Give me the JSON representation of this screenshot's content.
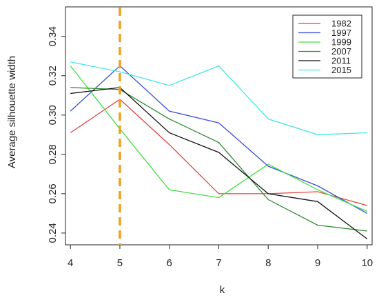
{
  "chart_data": {
    "type": "line",
    "title": "",
    "xlabel": "k",
    "ylabel": "Average silhouette width",
    "x": [
      4,
      5,
      6,
      7,
      8,
      9,
      10
    ],
    "x_ticks": [
      "4",
      "5",
      "6",
      "7",
      "8",
      "9",
      "10"
    ],
    "y_ticks": [
      "0.24",
      "0.26",
      "0.28",
      "0.30",
      "0.32",
      "0.34"
    ],
    "xlim": [
      3.9,
      10.1
    ],
    "ylim": [
      0.234,
      0.355
    ],
    "grid": false,
    "legend_position": "top-right",
    "series": [
      {
        "name": "1982",
        "color": "#e8413c",
        "values": [
          0.291,
          0.308,
          0.285,
          0.26,
          0.26,
          0.261,
          0.254
        ]
      },
      {
        "name": "1997",
        "color": "#3a4ed8",
        "values": [
          0.302,
          0.325,
          0.302,
          0.296,
          0.274,
          0.264,
          0.25
        ]
      },
      {
        "name": "1999",
        "color": "#3fe03f",
        "values": [
          0.325,
          0.293,
          0.262,
          0.258,
          0.275,
          0.262,
          0.251
        ]
      },
      {
        "name": "2007",
        "color": "#2e8b2e",
        "values": [
          0.314,
          0.313,
          0.298,
          0.286,
          0.257,
          0.244,
          0.241
        ]
      },
      {
        "name": "2011",
        "color": "#111111",
        "values": [
          0.311,
          0.314,
          0.291,
          0.281,
          0.26,
          0.256,
          0.237
        ]
      },
      {
        "name": "2015",
        "color": "#3de8e8",
        "values": [
          0.327,
          0.322,
          0.315,
          0.325,
          0.298,
          0.29,
          0.291
        ]
      }
    ],
    "annotations": [
      {
        "type": "vertical-dashed-line",
        "x": 5,
        "color": "#f0a020"
      }
    ]
  }
}
